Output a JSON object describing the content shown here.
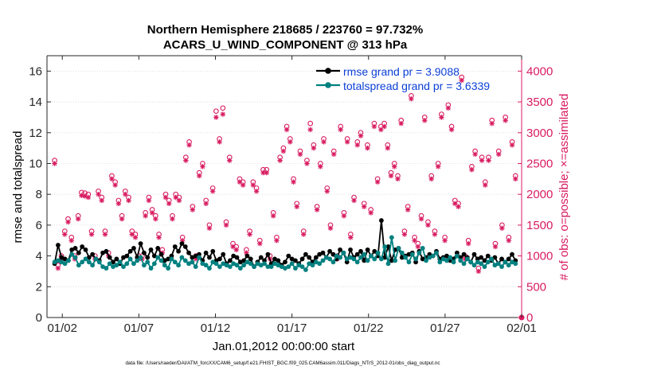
{
  "chart_data": {
    "type": "line",
    "title_line1": "Northern Hemisphere 218685 / 223760 = 97.732%",
    "title_line2": "ACARS_U_WIND_COMPONENT @ 313 hPa",
    "xlabel": "Jan.01,2012 00:00:00 start",
    "ylabel_left": "rmse and totalspread",
    "ylabel_right": "# of obs: o=possible; ×=assimilated",
    "footer": "data file: /Users/raeder/DAI/ATM_forcXX/CAM6_setup/f.e21.FHIST_BGC.f09_025.CAM6assim.011/Diags_NTrS_2012-01/obs_diag_output.nc",
    "xlim": [
      0.5,
      31.5
    ],
    "ylim_left": [
      0,
      17
    ],
    "ylim_right": [
      0,
      4250
    ],
    "x_ticks": [
      1.5,
      6.5,
      11.5,
      16.5,
      21.5,
      26.5,
      31.5
    ],
    "x_tick_labels": [
      "01/02",
      "01/07",
      "01/12",
      "01/17",
      "01/22",
      "01/27",
      "02/01"
    ],
    "y_ticks_left": [
      0,
      2,
      4,
      6,
      8,
      10,
      12,
      14,
      16
    ],
    "y_tick_labels_left": [
      "0",
      "2",
      "4",
      "6",
      "8",
      "10",
      "12",
      "14",
      "16"
    ],
    "y_ticks_right": [
      0,
      500,
      1000,
      1500,
      2000,
      2500,
      3000,
      3500,
      4000
    ],
    "y_tick_labels_right": [
      "0",
      "500",
      "1000",
      "1500",
      "2000",
      "2500",
      "3000",
      "3500",
      "4000"
    ],
    "legend_position": "top-right",
    "colors": {
      "rmse": "#000000",
      "totalspread": "#00807f",
      "obs": "#d81b60",
      "legend_text": "#0b3fd6"
    },
    "series": [
      {
        "name": "rmse",
        "legend": "rmse grand pr = 3.9088",
        "values": [
          3.5,
          4.7,
          3.9,
          3.8,
          3.7,
          4.4,
          4.5,
          4.2,
          4.6,
          4.4,
          3.9,
          4.1,
          3.8,
          3.7,
          4.2,
          4.3,
          3.9,
          3.6,
          3.8,
          3.5,
          3.9,
          4.0,
          4.3,
          4.5,
          3.9,
          4.8,
          4.2,
          3.9,
          4.4,
          4.0,
          4.5,
          4.1,
          3.7,
          3.8,
          4.0,
          4.6,
          4.3,
          4.8,
          4.6,
          4.2,
          3.9,
          4.0,
          4.1,
          3.7,
          4.2,
          3.9,
          4.3,
          3.7,
          3.8,
          4.1,
          3.5,
          3.7,
          4.0,
          3.9,
          3.6,
          3.7,
          4.0,
          3.8,
          3.3,
          3.6,
          3.9,
          3.7,
          4.1,
          3.5,
          3.8,
          3.7,
          3.4,
          3.6,
          4.0,
          3.8,
          3.7,
          3.5,
          3.8,
          4.1,
          3.9,
          3.6,
          3.9,
          4.1,
          4.2,
          3.9,
          4.3,
          4.1,
          3.8,
          4.4,
          4.2,
          3.6,
          4.4,
          3.9,
          4.1,
          4.3,
          3.7,
          4.4,
          4.0,
          4.3,
          4.0,
          6.3,
          3.9,
          4.6,
          3.7,
          4.4,
          4.5,
          3.9,
          4.0,
          4.1,
          4.2,
          3.6,
          4.3,
          3.8,
          3.9,
          4.1,
          4.0,
          4.3,
          3.8,
          3.9,
          4.0,
          3.7,
          3.8,
          4.2,
          3.9,
          4.1,
          3.9,
          3.6,
          4.1,
          3.8,
          3.9,
          3.7,
          4.0,
          3.7,
          3.9,
          3.5,
          3.8,
          3.6,
          3.8,
          4.1,
          3.7
        ],
        "markers": [
          "circle"
        ]
      },
      {
        "name": "totalspread",
        "legend": "totalspread grand pr = 3.6339",
        "values": [
          3.6,
          3.7,
          3.6,
          3.5,
          3.7,
          4.1,
          3.9,
          3.4,
          3.6,
          3.8,
          3.6,
          3.4,
          3.8,
          3.6,
          3.3,
          3.2,
          3.5,
          3.3,
          3.4,
          3.6,
          3.3,
          3.5,
          3.8,
          3.5,
          3.7,
          3.9,
          3.4,
          3.6,
          3.2,
          3.5,
          3.9,
          3.7,
          3.4,
          3.2,
          3.8,
          3.6,
          3.4,
          3.9,
          3.7,
          3.5,
          3.6,
          3.3,
          3.9,
          3.5,
          3.4,
          3.2,
          3.6,
          3.5,
          3.3,
          3.5,
          3.4,
          3.3,
          3.5,
          3.4,
          3.2,
          3.4,
          3.6,
          3.5,
          3.3,
          3.5,
          3.4,
          3.5,
          3.3,
          3.3,
          3.5,
          3.4,
          3.3,
          3.2,
          3.3,
          3.5,
          3.2,
          3.4,
          3.3,
          3.1,
          3.5,
          3.4,
          3.6,
          3.5,
          3.7,
          3.9,
          3.8,
          3.6,
          4.0,
          3.9,
          4.2,
          3.8,
          3.9,
          3.8,
          3.6,
          3.9,
          4.1,
          3.7,
          4.0,
          3.8,
          4.2,
          3.8,
          4.6,
          3.5,
          5.2,
          3.7,
          4.5,
          4.2,
          3.9,
          3.6,
          4.1,
          3.8,
          4.2,
          4.5,
          3.7,
          3.9,
          4.0,
          4.2,
          3.6,
          3.8,
          3.7,
          3.9,
          3.6,
          4.0,
          3.7,
          3.5,
          3.8,
          3.6,
          3.4,
          3.6,
          3.5,
          3.3,
          3.6,
          3.8,
          3.4,
          3.5,
          3.3,
          3.6,
          3.4,
          3.6,
          3.5
        ],
        "markers": [
          "circle"
        ]
      },
      {
        "name": "obs_possible",
        "axis": "right",
        "marker": "o",
        "values": [
          2550,
          850,
          1000,
          1400,
          1600,
          1300,
          1000,
          1650,
          2030,
          2020,
          2000,
          1400,
          1000,
          2050,
          1950,
          1400,
          1050,
          2300,
          2200,
          1900,
          1650,
          2050,
          1950,
          1400,
          1350,
          1000,
          1000,
          1700,
          1950,
          1750,
          1650,
          1350,
          1100,
          2000,
          1900,
          1650,
          2000,
          1950,
          1300,
          2600,
          2850,
          1800,
          1000,
          2350,
          2500,
          1900,
          1500,
          2100,
          3350,
          2900,
          3400,
          1550,
          2600,
          1200,
          1150,
          2250,
          2200,
          1100,
          1400,
          2200,
          2100,
          1250,
          2400,
          2400,
          1000,
          1700,
          1300,
          2600,
          2750,
          3100,
          2900,
          2250,
          1850,
          2700,
          1400,
          2550,
          3150,
          2800,
          1800,
          2500,
          2900,
          2100,
          1500,
          2700,
          1000,
          3100,
          1700,
          2900,
          1350,
          1950,
          2850,
          3000,
          1850,
          2800,
          1750,
          3150,
          2250,
          3100,
          3150,
          2800,
          2350,
          2500,
          2300,
          3200,
          1400,
          1800,
          3600,
          1300,
          1200,
          1650,
          3250,
          1550,
          2300,
          1400,
          2500,
          3300,
          1300,
          3450,
          3100,
          1900,
          1850,
          3900,
          1000,
          1250,
          2450,
          2700,
          800,
          2600,
          2200,
          2600,
          3200,
          1200,
          2700,
          1500,
          3250,
          1300,
          2850,
          2300
        ]
      },
      {
        "name": "obs_assimilated",
        "axis": "right",
        "marker": "x",
        "values": [
          2500,
          800,
          950,
          1350,
          1550,
          1250,
          950,
          1600,
          1980,
          1970,
          1950,
          1350,
          950,
          2000,
          1900,
          1350,
          1000,
          2250,
          2150,
          1850,
          1600,
          2000,
          1900,
          1350,
          1300,
          950,
          950,
          1650,
          1900,
          1700,
          1600,
          1300,
          1050,
          1950,
          1850,
          1600,
          1950,
          1900,
          1250,
          2550,
          2800,
          1750,
          950,
          2300,
          2450,
          1850,
          1450,
          2050,
          3250,
          2850,
          3300,
          1500,
          2550,
          1150,
          1100,
          2200,
          2150,
          1050,
          1350,
          2150,
          2050,
          1200,
          2350,
          2350,
          950,
          1650,
          1250,
          2550,
          2700,
          3050,
          2850,
          2200,
          1800,
          2650,
          1350,
          2500,
          3050,
          2750,
          1750,
          2450,
          2850,
          2050,
          1450,
          2650,
          950,
          3050,
          1650,
          2850,
          1300,
          1900,
          2800,
          2950,
          1800,
          2750,
          1700,
          3100,
          2200,
          3050,
          3100,
          2750,
          2300,
          2450,
          2250,
          3150,
          1350,
          1750,
          3550,
          1250,
          1150,
          1600,
          3200,
          1500,
          2250,
          1350,
          2450,
          3250,
          1250,
          3400,
          3050,
          1850,
          1800,
          3850,
          950,
          1200,
          2400,
          2650,
          750,
          2550,
          2150,
          2550,
          3150,
          1150,
          2650,
          1450,
          3200,
          1250,
          2800,
          2250
        ]
      }
    ],
    "final_obs_point": {
      "x": 31.5,
      "possible": 0,
      "assimilated": 0
    }
  }
}
